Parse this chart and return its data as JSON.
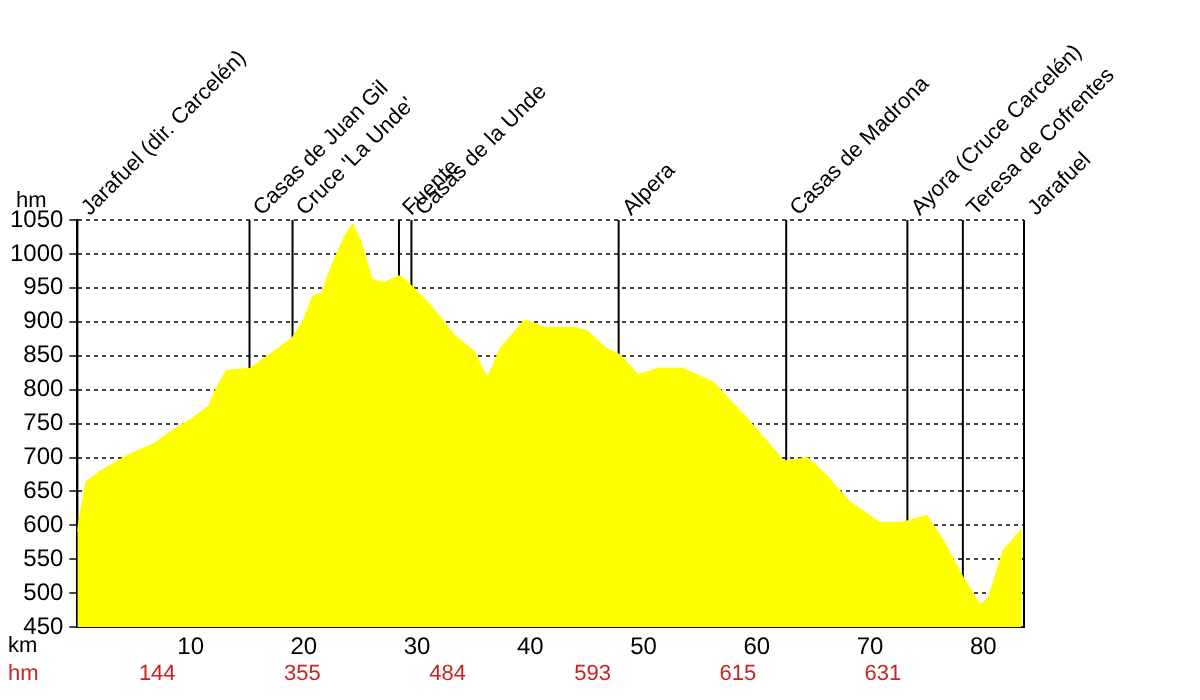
{
  "chart_data": {
    "type": "area",
    "xlabel": "km",
    "ylabel": "hm",
    "x": [
      0,
      0.8,
      2.1,
      4.7,
      6.8,
      8.9,
      10,
      11.6,
      12.4,
      13.2,
      15.3,
      17.4,
      19,
      20,
      20.8,
      21.6,
      22.6,
      23.7,
      24.3,
      25,
      26,
      27.1,
      28.4,
      28.9,
      31,
      33.2,
      35,
      36.2,
      37.4,
      39.5,
      40.5,
      41.3,
      43.9,
      45,
      46.6,
      47.9,
      49.5,
      51.3,
      53.4,
      56.1,
      58.7,
      60.8,
      62.4,
      64.5,
      66.1,
      68.2,
      70.8,
      72.9,
      75,
      76.6,
      78.2,
      79.7,
      80.5,
      81.8,
      83.4
    ],
    "series": [
      {
        "color": "#ffff00",
        "values": [
          590,
          664,
          680,
          705,
          720,
          745,
          755,
          775,
          805,
          828,
          831,
          856,
          876,
          902,
          937,
          942,
          987,
          1028,
          1043,
          1018,
          962,
          957,
          967,
          962,
          927,
          881,
          856,
          816,
          861,
          902,
          896,
          891,
          891,
          886,
          861,
          851,
          821,
          831,
          831,
          811,
          765,
          725,
          694,
          699,
          674,
          634,
          604,
          604,
          614,
          573,
          523,
          482,
          493,
          563,
          593
        ]
      }
    ],
    "xlim": [
      0,
      83.6
    ],
    "xticks": [
      10,
      20,
      30,
      40,
      50,
      60,
      70,
      80
    ],
    "ylim": [
      450,
      1050
    ],
    "yticks": [
      450,
      500,
      550,
      600,
      650,
      700,
      750,
      800,
      850,
      900,
      950,
      1000,
      1050
    ],
    "grid": "y",
    "legend": false,
    "marker": "none",
    "ref_lines": [
      {
        "axis": "x",
        "value": 0,
        "label": "Jarafuel (dir. Carcelén)"
      },
      {
        "axis": "x",
        "value": 15.2,
        "label": "Casas de Juan Gil"
      },
      {
        "axis": "x",
        "value": 19,
        "label": "Cruce 'La Unde'"
      },
      {
        "axis": "x",
        "value": 28.4,
        "label": "Fuente"
      },
      {
        "axis": "x",
        "value": 29.5,
        "label": "Casas de la Unde"
      },
      {
        "axis": "x",
        "value": 47.8,
        "label": "Alpera"
      },
      {
        "axis": "x",
        "value": 62.6,
        "label": "Casas de Madrona"
      },
      {
        "axis": "x",
        "value": 73.3,
        "label": "Ayora (Cruce Carcelén)"
      },
      {
        "axis": "x",
        "value": 78.2,
        "label": "Teresa de Cofrentes"
      },
      {
        "axis": "x",
        "value": 83.6,
        "label": "Jarafuel"
      }
    ],
    "annotations": [
      "hm",
      "144",
      "355",
      "484",
      "593",
      "615",
      "631"
    ]
  }
}
